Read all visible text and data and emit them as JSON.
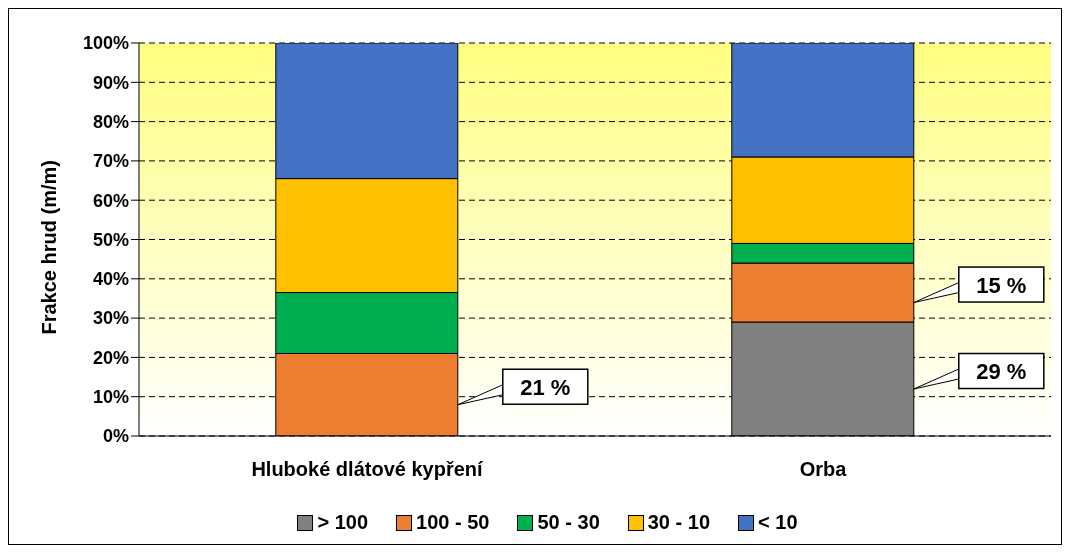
{
  "chart_data": {
    "type": "bar",
    "stacked": true,
    "ylabel": "Frakce hrud (m/m)",
    "categories": [
      "Hluboké dlátové kypření",
      "Orba"
    ],
    "series": [
      {
        "name": "> 100",
        "color": "#808080",
        "values": [
          0,
          29
        ],
        "value_labels": [
          null,
          "29 %"
        ]
      },
      {
        "name": "100 - 50",
        "color": "#ed7d31",
        "values": [
          21,
          15
        ],
        "value_labels": [
          "21 %",
          "15 %"
        ]
      },
      {
        "name": "50 - 30",
        "color": "#00b050",
        "values": [
          15.5,
          5
        ]
      },
      {
        "name": "30 - 10",
        "color": "#ffc000",
        "values": [
          29,
          22
        ]
      },
      {
        "name": "< 10",
        "color": "#4472c4",
        "values": [
          34.5,
          29
        ]
      }
    ],
    "ylim": [
      0,
      100
    ],
    "yticks": [
      {
        "value": 0,
        "label": "0%"
      },
      {
        "value": 10,
        "label": "10%"
      },
      {
        "value": 20,
        "label": "20%"
      },
      {
        "value": 30,
        "label": "30%"
      },
      {
        "value": 40,
        "label": "40%"
      },
      {
        "value": 50,
        "label": "50%"
      },
      {
        "value": 60,
        "label": "60%"
      },
      {
        "value": 70,
        "label": "70%"
      },
      {
        "value": 80,
        "label": "80%"
      },
      {
        "value": 90,
        "label": "90%"
      },
      {
        "value": 100,
        "label": "100%"
      }
    ],
    "grid": "y",
    "legend": "bottom"
  }
}
